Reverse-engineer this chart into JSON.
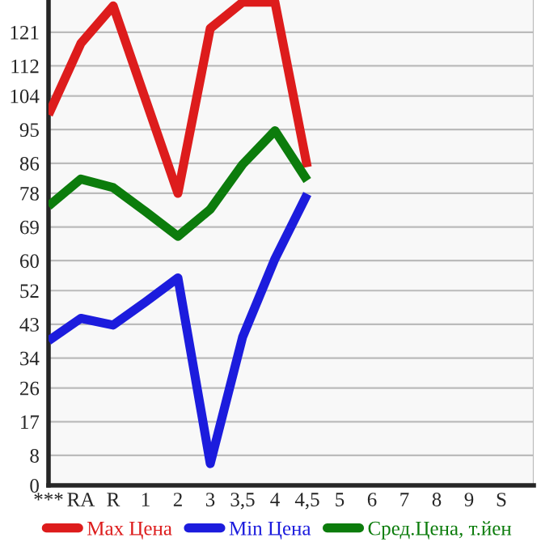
{
  "chart_data": {
    "type": "line",
    "categories": [
      "***",
      "RA",
      "R",
      "1",
      "2",
      "3",
      "3,5",
      "4",
      "4,5",
      "5",
      "6",
      "7",
      "8",
      "9",
      "S"
    ],
    "series": [
      {
        "name": "Max Цена",
        "color": "#dd1c1c",
        "values": [
          99,
          118,
          128,
          103,
          78,
          122,
          129,
          129,
          85,
          null,
          null,
          null,
          null,
          null,
          null
        ]
      },
      {
        "name": "Min Цена",
        "color": "#1c1cdd",
        "values": [
          38.6,
          44.6,
          42.8,
          49,
          55.4,
          5.8,
          39.6,
          60.5,
          77.8,
          null,
          null,
          null,
          null,
          null,
          null
        ]
      },
      {
        "name": "Сред.Цена, т.йен",
        "color": "#0c7c0c",
        "values": [
          74.6,
          81.8,
          79.5,
          73.1,
          66.5,
          73.7,
          85.7,
          94.7,
          81.4,
          null,
          null,
          null,
          null,
          null,
          null
        ]
      }
    ],
    "ylim": [
      0,
      129.6
    ],
    "yticks": [
      0,
      8,
      17,
      26,
      34,
      43,
      52,
      60,
      69,
      78,
      86,
      95,
      104,
      112,
      121
    ],
    "grid": true,
    "legend": "bottom",
    "marker": "none",
    "line_style": "solid"
  }
}
